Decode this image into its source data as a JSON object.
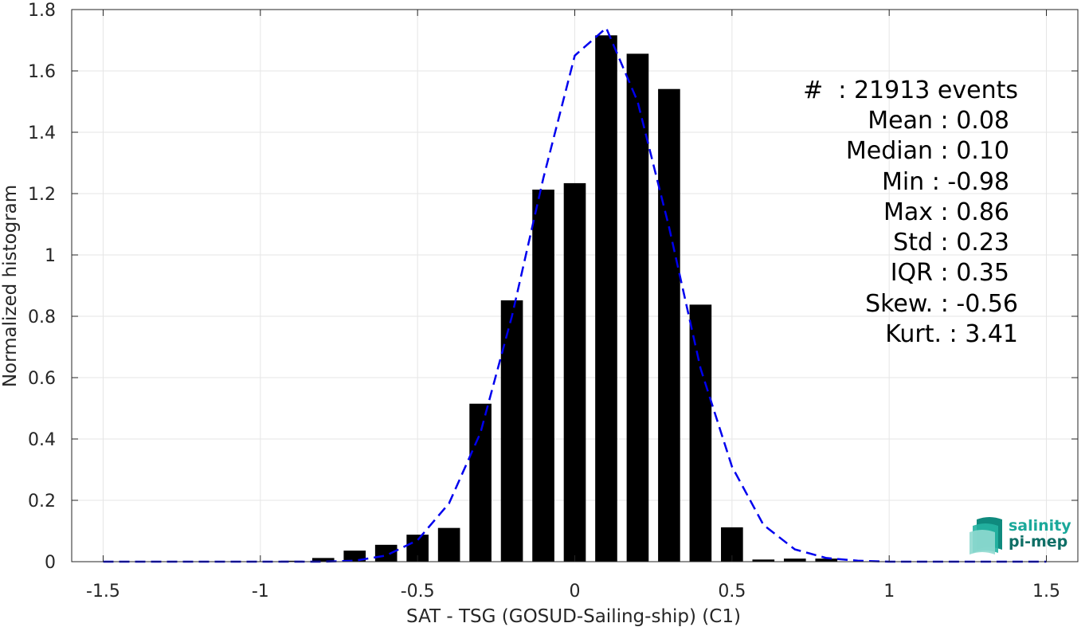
{
  "chart_data": {
    "type": "bar",
    "xlabel": "SAT - TSG (GOSUD-Sailing-ship) (C1)",
    "ylabel": "Normalized histogram",
    "xlim": [
      -1.6,
      1.6
    ],
    "ylim": [
      0,
      1.8
    ],
    "grid": true,
    "xticks": [
      -1.5,
      -1,
      -0.5,
      0,
      0.5,
      1,
      1.5
    ],
    "xtick_labels": [
      "-1.5",
      "-1",
      "-0.5",
      "0",
      "0.5",
      "1",
      "1.5"
    ],
    "yticks": [
      0,
      0.2,
      0.4,
      0.6,
      0.8,
      1,
      1.2,
      1.4,
      1.6,
      1.8
    ],
    "ytick_labels": [
      "0",
      "0.2",
      "0.4",
      "0.6",
      "0.8",
      "1",
      "1.2",
      "1.4",
      "1.6",
      "1.8"
    ],
    "bar_width": 0.07,
    "bar_color": "#000000",
    "bars": {
      "x": [
        -0.9,
        -0.8,
        -0.7,
        -0.6,
        -0.5,
        -0.4,
        -0.3,
        -0.2,
        -0.1,
        0.0,
        0.1,
        0.2,
        0.3,
        0.4,
        0.5,
        0.6,
        0.7,
        0.8
      ],
      "values": [
        0.003,
        0.012,
        0.036,
        0.055,
        0.088,
        0.11,
        0.515,
        0.852,
        1.213,
        1.234,
        1.716,
        1.656,
        1.541,
        0.838,
        0.112,
        0.007,
        0.01,
        0.01
      ]
    },
    "fit_line": {
      "color": "#0000ee",
      "style": "dashed",
      "x": [
        -1.5,
        -1.4,
        -1.3,
        -1.2,
        -1.1,
        -1.0,
        -0.9,
        -0.8,
        -0.7,
        -0.6,
        -0.5,
        -0.4,
        -0.3,
        -0.2,
        -0.1,
        0.0,
        0.1,
        0.2,
        0.3,
        0.4,
        0.5,
        0.6,
        0.7,
        0.8,
        0.9,
        1.0,
        1.1,
        1.2,
        1.3,
        1.4,
        1.5
      ],
      "y": [
        0,
        0,
        0,
        0,
        0,
        0,
        0,
        0,
        0.003,
        0.02,
        0.07,
        0.19,
        0.42,
        0.8,
        1.25,
        1.65,
        1.74,
        1.5,
        1.09,
        0.63,
        0.31,
        0.12,
        0.04,
        0.012,
        0.003,
        0,
        0,
        0,
        0,
        0,
        0
      ]
    },
    "annotations": {
      "events": "#  : 21913 events",
      "mean": "Mean : 0.08",
      "median": "Median : 0.10",
      "min": "Min : -0.98",
      "max": "Max : 0.86",
      "std": "Std : 0.23",
      "iqr": "IQR : 0.35",
      "skew": "Skew. : -0.56",
      "kurt": "Kurt. : 3.41"
    }
  },
  "logo": {
    "line1": "salinity",
    "line2": "pi-mep",
    "color1": "#1aa89a",
    "color2": "#0f6f66"
  }
}
